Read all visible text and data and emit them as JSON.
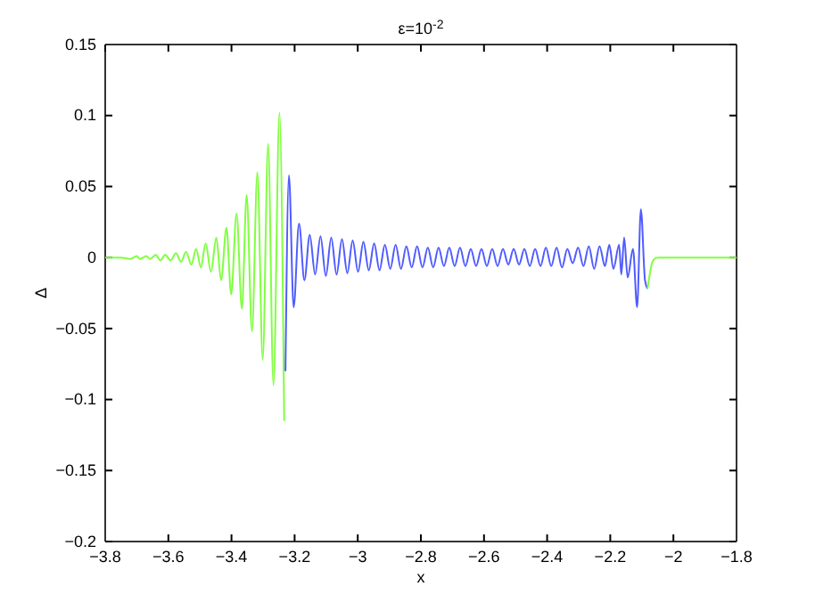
{
  "chart_data": {
    "type": "line",
    "title": "ε=10$^{-2}$",
    "xlabel": "x",
    "ylabel": "Δ",
    "xlim": [
      -3.8,
      -1.8
    ],
    "xticks": [
      -3.8,
      -3.6,
      -3.4,
      -3.2,
      -3,
      -2.8,
      -2.6,
      -2.4,
      -2.2,
      -2,
      -1.8
    ],
    "ylim": [
      -0.2,
      0.15
    ],
    "yticks": [
      -0.2,
      -0.15,
      -0.1,
      -0.05,
      0,
      0.05,
      0.1,
      0.15
    ],
    "series": [
      {
        "color": "#80ff40",
        "x": [
          -3.8,
          -3.75,
          -3.72,
          -3.7,
          -3.69,
          -3.67,
          -3.657,
          -3.64,
          -3.625,
          -3.61,
          -3.593,
          -3.576,
          -3.56,
          -3.544,
          -3.527,
          -3.512,
          -3.497,
          -3.482,
          -3.465,
          -3.448,
          -3.433,
          -3.416,
          -3.401,
          -3.384,
          -3.367,
          -3.352,
          -3.335,
          -3.318,
          -3.301,
          -3.284,
          -3.267,
          -3.248,
          -3.233
        ],
        "values": [
          0,
          0,
          -0.001,
          0.001,
          -0.001,
          0.001,
          -0.001,
          0.002,
          -0.002,
          0.002,
          -0.002,
          0.003,
          -0.003,
          0.004,
          -0.005,
          0.006,
          -0.007,
          0.01,
          -0.01,
          0.014,
          -0.016,
          0.021,
          -0.026,
          0.031,
          -0.036,
          0.044,
          -0.052,
          0.06,
          -0.072,
          0.08,
          -0.09,
          0.102,
          -0.115
        ]
      },
      {
        "color": "#4f5cff",
        "x": [
          -3.229,
          -3.218,
          -3.203,
          -3.186,
          -3.169,
          -3.152,
          -3.135,
          -3.118,
          -3.101,
          -3.084,
          -3.067,
          -3.05,
          -3.033,
          -3.016,
          -2.999,
          -2.982,
          -2.965,
          -2.948,
          -2.931,
          -2.914,
          -2.897,
          -2.88,
          -2.863,
          -2.846,
          -2.829,
          -2.812,
          -2.795,
          -2.778,
          -2.761,
          -2.744,
          -2.727,
          -2.71,
          -2.693,
          -2.676,
          -2.659,
          -2.642,
          -2.625,
          -2.608,
          -2.591,
          -2.574,
          -2.557,
          -2.54,
          -2.523,
          -2.506,
          -2.489,
          -2.472,
          -2.455,
          -2.438,
          -2.421,
          -2.404,
          -2.387,
          -2.37,
          -2.353,
          -2.336,
          -2.319,
          -2.302,
          -2.285,
          -2.268,
          -2.251,
          -2.234,
          -2.217,
          -2.203,
          -2.19,
          -2.172,
          -2.165,
          -2.156,
          -2.145,
          -2.128,
          -2.115,
          -2.103,
          -2.09,
          -2.082
        ],
        "values": [
          -0.08,
          0.058,
          -0.035,
          0.024,
          -0.016,
          0.016,
          -0.012,
          0.015,
          -0.013,
          0.014,
          -0.012,
          0.013,
          -0.011,
          0.012,
          -0.01,
          0.011,
          -0.009,
          0.01,
          -0.009,
          0.009,
          -0.008,
          0.009,
          -0.008,
          0.008,
          -0.007,
          0.008,
          -0.007,
          0.007,
          -0.007,
          0.007,
          -0.006,
          0.007,
          -0.006,
          0.007,
          -0.006,
          0.006,
          -0.006,
          0.006,
          -0.006,
          0.006,
          -0.006,
          0.006,
          -0.005,
          0.006,
          -0.005,
          0.006,
          -0.006,
          0.006,
          -0.006,
          0.007,
          -0.006,
          0.007,
          -0.007,
          0.006,
          -0.004,
          0.007,
          -0.006,
          0.008,
          -0.008,
          0.008,
          -0.006,
          0.009,
          -0.008,
          0.009,
          -0.012,
          0.014,
          -0.014,
          0.006,
          -0.035,
          0.034,
          -0.016,
          -0.022
        ]
      },
      {
        "color": "#80ff40",
        "x": [
          -2.082,
          -2.075,
          -2.068,
          -2.06,
          -2.05,
          -1.8
        ],
        "values": [
          -0.022,
          -0.012,
          -0.004,
          -0.001,
          0,
          0
        ]
      }
    ]
  }
}
